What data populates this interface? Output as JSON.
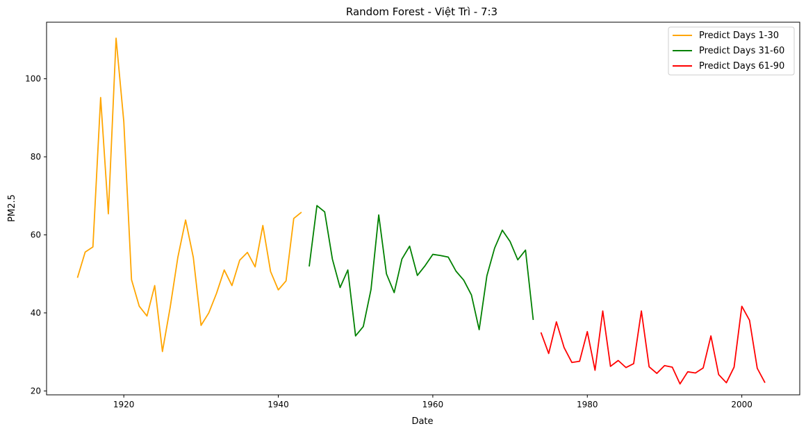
{
  "chart_data": {
    "type": "line",
    "title": "Random Forest - Việt Trì - 7:3",
    "xlabel": "Date",
    "ylabel": "PM2.5",
    "xlim": [
      1910,
      2007.5
    ],
    "ylim": [
      19,
      114.5
    ],
    "xticks": [
      1920,
      1940,
      1960,
      1980,
      2000
    ],
    "yticks": [
      20,
      40,
      60,
      80,
      100
    ],
    "grid": false,
    "legend_position": "top-right",
    "series": [
      {
        "name": "Predict Days 1-30",
        "color": "#ffa500",
        "x": [
          1914,
          1915,
          1916,
          1917,
          1918,
          1919,
          1920,
          1921,
          1922,
          1923,
          1924,
          1925,
          1926,
          1927,
          1928,
          1929,
          1930,
          1931,
          1932,
          1933,
          1934,
          1935,
          1936,
          1937,
          1938,
          1939,
          1940,
          1941,
          1942,
          1943
        ],
        "values": [
          49.0,
          55.6,
          56.9,
          95.2,
          65.4,
          110.4,
          89.0,
          48.5,
          41.7,
          39.2,
          47.0,
          30.1,
          41.4,
          54.3,
          63.8,
          54.2,
          36.8,
          40.0,
          45.0,
          51.0,
          47.0,
          53.5,
          55.5,
          51.8,
          62.4,
          50.6,
          45.9,
          48.2,
          64.2,
          65.8
        ]
      },
      {
        "name": "Predict Days 31-60",
        "color": "#008000",
        "x": [
          1944,
          1945,
          1946,
          1947,
          1948,
          1949,
          1950,
          1951,
          1952,
          1953,
          1954,
          1955,
          1956,
          1957,
          1958,
          1959,
          1960,
          1961,
          1962,
          1963,
          1964,
          1965,
          1966,
          1967,
          1968,
          1969,
          1970,
          1971,
          1972,
          1973
        ],
        "values": [
          51.9,
          67.5,
          65.9,
          53.8,
          46.5,
          51.0,
          34.1,
          36.5,
          46.0,
          65.1,
          50.0,
          45.2,
          53.8,
          57.1,
          49.6,
          52.1,
          55.0,
          54.7,
          54.3,
          50.7,
          48.4,
          44.6,
          35.7,
          49.5,
          56.6,
          61.2,
          58.3,
          53.6,
          56.1,
          38.2
        ]
      },
      {
        "name": "Predict Days 61-90",
        "color": "#ff0000",
        "x": [
          1974,
          1975,
          1976,
          1977,
          1978,
          1979,
          1980,
          1981,
          1982,
          1983,
          1984,
          1985,
          1986,
          1987,
          1988,
          1989,
          1990,
          1991,
          1992,
          1993,
          1994,
          1995,
          1996,
          1997,
          1998,
          1999,
          2000,
          2001,
          2002,
          2003
        ],
        "values": [
          35.0,
          29.6,
          37.7,
          31.1,
          27.3,
          27.6,
          35.2,
          25.3,
          40.5,
          26.3,
          27.8,
          26.0,
          27.0,
          40.5,
          26.2,
          24.5,
          26.5,
          26.1,
          21.8,
          24.9,
          24.6,
          25.9,
          34.1,
          24.2,
          22.1,
          26.1,
          41.7,
          38.1,
          25.8,
          22.1
        ]
      }
    ]
  }
}
